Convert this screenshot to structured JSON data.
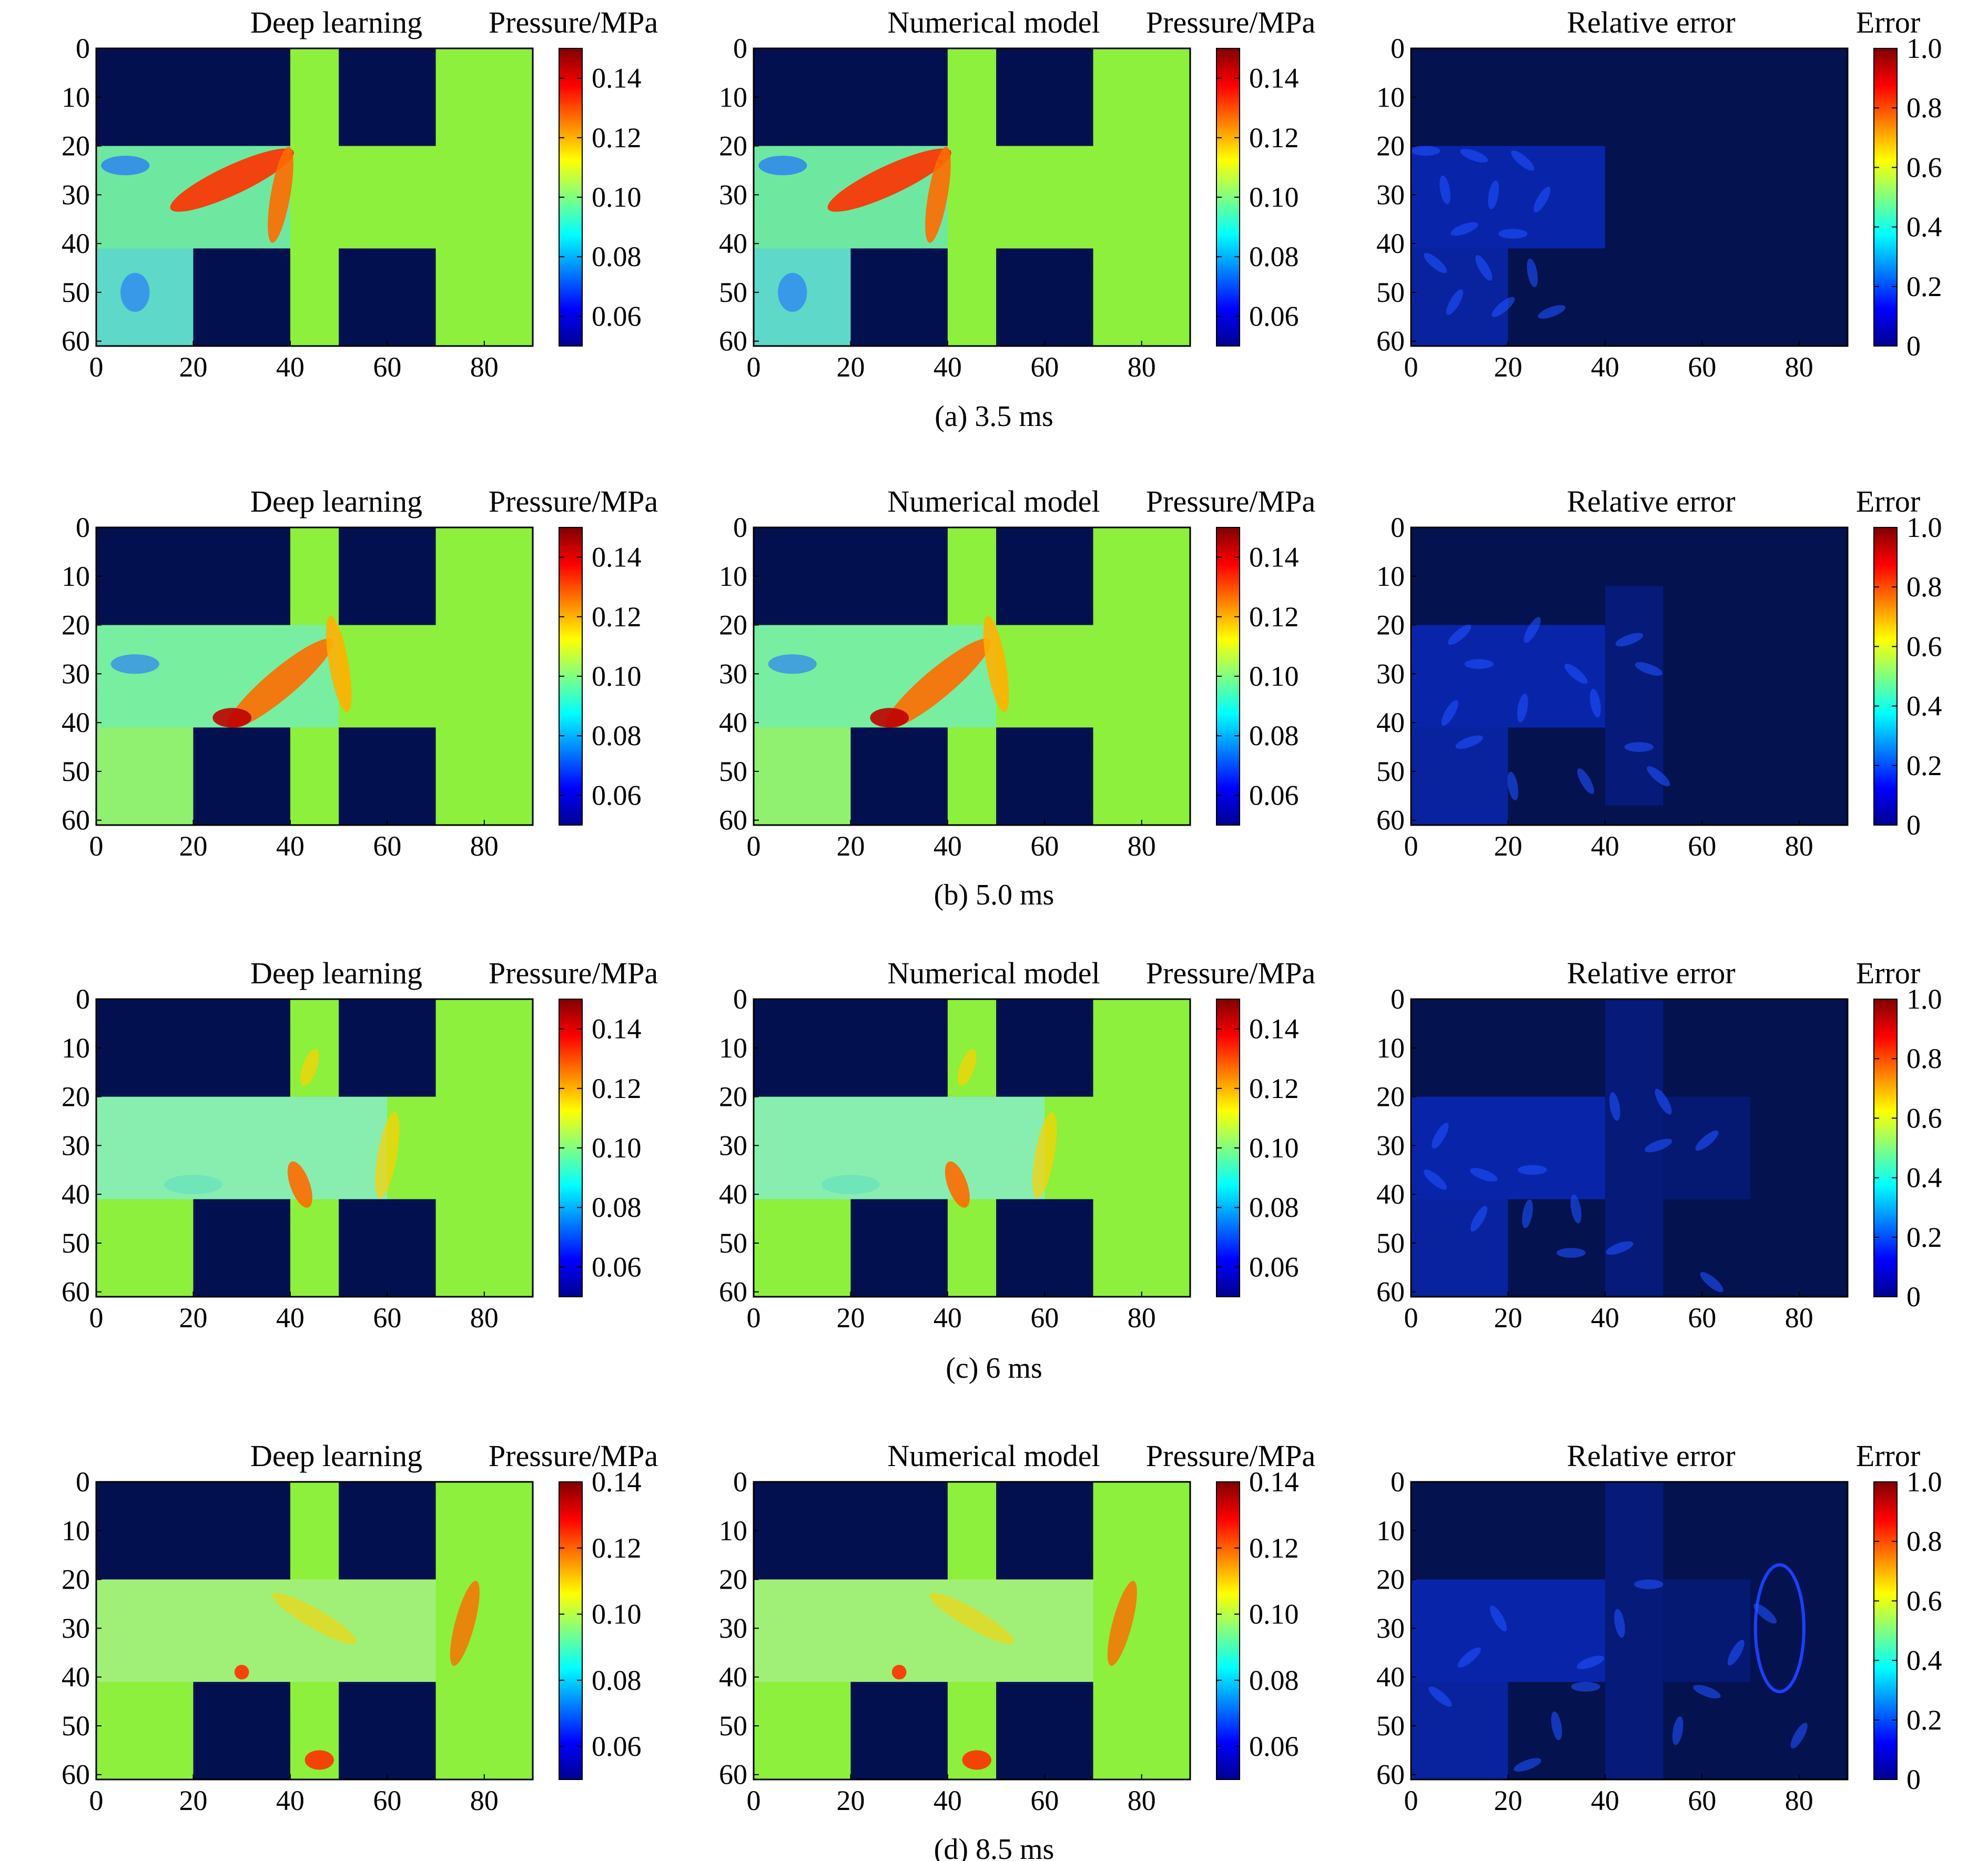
{
  "chart_data": [
    {
      "type": "heatmap",
      "subplot_id": "a",
      "caption": "(a) 3.5 ms",
      "panels": [
        {
          "title": "Deep learning",
          "colorbar_label": "Pressure/MPa",
          "colorbar_ticks": [
            "0.06",
            "0.08",
            "0.10",
            "0.12",
            "0.14"
          ],
          "colorbar_range": [
            0.05,
            0.15
          ]
        },
        {
          "title": "Numerical model",
          "colorbar_label": "Pressure/MPa",
          "colorbar_ticks": [
            "0.06",
            "0.08",
            "0.10",
            "0.12",
            "0.14"
          ],
          "colorbar_range": [
            0.05,
            0.15
          ]
        },
        {
          "title": "Relative error",
          "colorbar_label": "Error",
          "colorbar_ticks": [
            "0",
            "0.2",
            "0.4",
            "0.6",
            "0.8",
            "1.0"
          ],
          "colorbar_range": [
            0,
            1.0
          ]
        }
      ],
      "xticks": [
        "0",
        "20",
        "40",
        "60",
        "80"
      ],
      "yticks": [
        "0",
        "10",
        "20",
        "30",
        "40",
        "50",
        "60"
      ],
      "xlim": [
        0,
        90
      ],
      "ylim": [
        0,
        60
      ]
    },
    {
      "type": "heatmap",
      "subplot_id": "b",
      "caption": "(b) 5.0 ms",
      "panels": [
        {
          "title": "Deep learning",
          "colorbar_label": "Pressure/MPa",
          "colorbar_ticks": [
            "0.06",
            "0.08",
            "0.10",
            "0.12",
            "0.14"
          ],
          "colorbar_range": [
            0.05,
            0.15
          ]
        },
        {
          "title": "Numerical model",
          "colorbar_label": "Pressure/MPa",
          "colorbar_ticks": [
            "0.06",
            "0.08",
            "0.10",
            "0.12",
            "0.14"
          ],
          "colorbar_range": [
            0.05,
            0.15
          ]
        },
        {
          "title": "Relative error",
          "colorbar_label": "Error",
          "colorbar_ticks": [
            "0",
            "0.2",
            "0.4",
            "0.6",
            "0.8",
            "1.0"
          ],
          "colorbar_range": [
            0,
            1.0
          ]
        }
      ],
      "xticks": [
        "0",
        "20",
        "40",
        "60",
        "80"
      ],
      "yticks": [
        "0",
        "10",
        "20",
        "30",
        "40",
        "50",
        "60"
      ],
      "xlim": [
        0,
        90
      ],
      "ylim": [
        0,
        60
      ]
    },
    {
      "type": "heatmap",
      "subplot_id": "c",
      "caption": "(c) 6 ms",
      "panels": [
        {
          "title": "Deep learning",
          "colorbar_label": "Pressure/MPa",
          "colorbar_ticks": [
            "0.06",
            "0.08",
            "0.10",
            "0.12",
            "0.14"
          ],
          "colorbar_range": [
            0.05,
            0.15
          ]
        },
        {
          "title": "Numerical model",
          "colorbar_label": "Pressure/MPa",
          "colorbar_ticks": [
            "0.06",
            "0.08",
            "0.10",
            "0.12",
            "0.14"
          ],
          "colorbar_range": [
            0.05,
            0.15
          ]
        },
        {
          "title": "Relative error",
          "colorbar_label": "Error",
          "colorbar_ticks": [
            "0",
            "0.2",
            "0.4",
            "0.6",
            "0.8",
            "1.0"
          ],
          "colorbar_range": [
            0,
            1.0
          ]
        }
      ],
      "xticks": [
        "0",
        "20",
        "40",
        "60",
        "80"
      ],
      "yticks": [
        "0",
        "10",
        "20",
        "30",
        "40",
        "50",
        "60"
      ],
      "xlim": [
        0,
        90
      ],
      "ylim": [
        0,
        60
      ]
    },
    {
      "type": "heatmap",
      "subplot_id": "d",
      "caption": "(d) 8.5 ms",
      "panels": [
        {
          "title": "Deep learning",
          "colorbar_label": "Pressure/MPa",
          "colorbar_ticks": [
            "0.06",
            "0.08",
            "0.10",
            "0.12",
            "0.14"
          ],
          "colorbar_range": [
            0.05,
            0.14
          ]
        },
        {
          "title": "Numerical model",
          "colorbar_label": "Pressure/MPa",
          "colorbar_ticks": [
            "0.06",
            "0.08",
            "0.10",
            "0.12",
            "0.14"
          ],
          "colorbar_range": [
            0.05,
            0.14
          ]
        },
        {
          "title": "Relative error",
          "colorbar_label": "Error",
          "colorbar_ticks": [
            "0",
            "0.2",
            "0.4",
            "0.6",
            "0.8",
            "1.0"
          ],
          "colorbar_range": [
            0,
            1.0
          ]
        }
      ],
      "xticks": [
        "0",
        "20",
        "40",
        "60",
        "80"
      ],
      "yticks": [
        "0",
        "10",
        "20",
        "30",
        "40",
        "50",
        "60"
      ],
      "xlim": [
        0,
        90
      ],
      "ylim": [
        0,
        60
      ]
    }
  ],
  "colors": {
    "obstacle": "#03104f",
    "background_field": "#8cf03c",
    "error_background": "#04124f",
    "colormap_jet": [
      "#00008f",
      "#0000ff",
      "#0080ff",
      "#00ffff",
      "#80ff80",
      "#ffff00",
      "#ff8000",
      "#ff0000",
      "#800000"
    ]
  }
}
